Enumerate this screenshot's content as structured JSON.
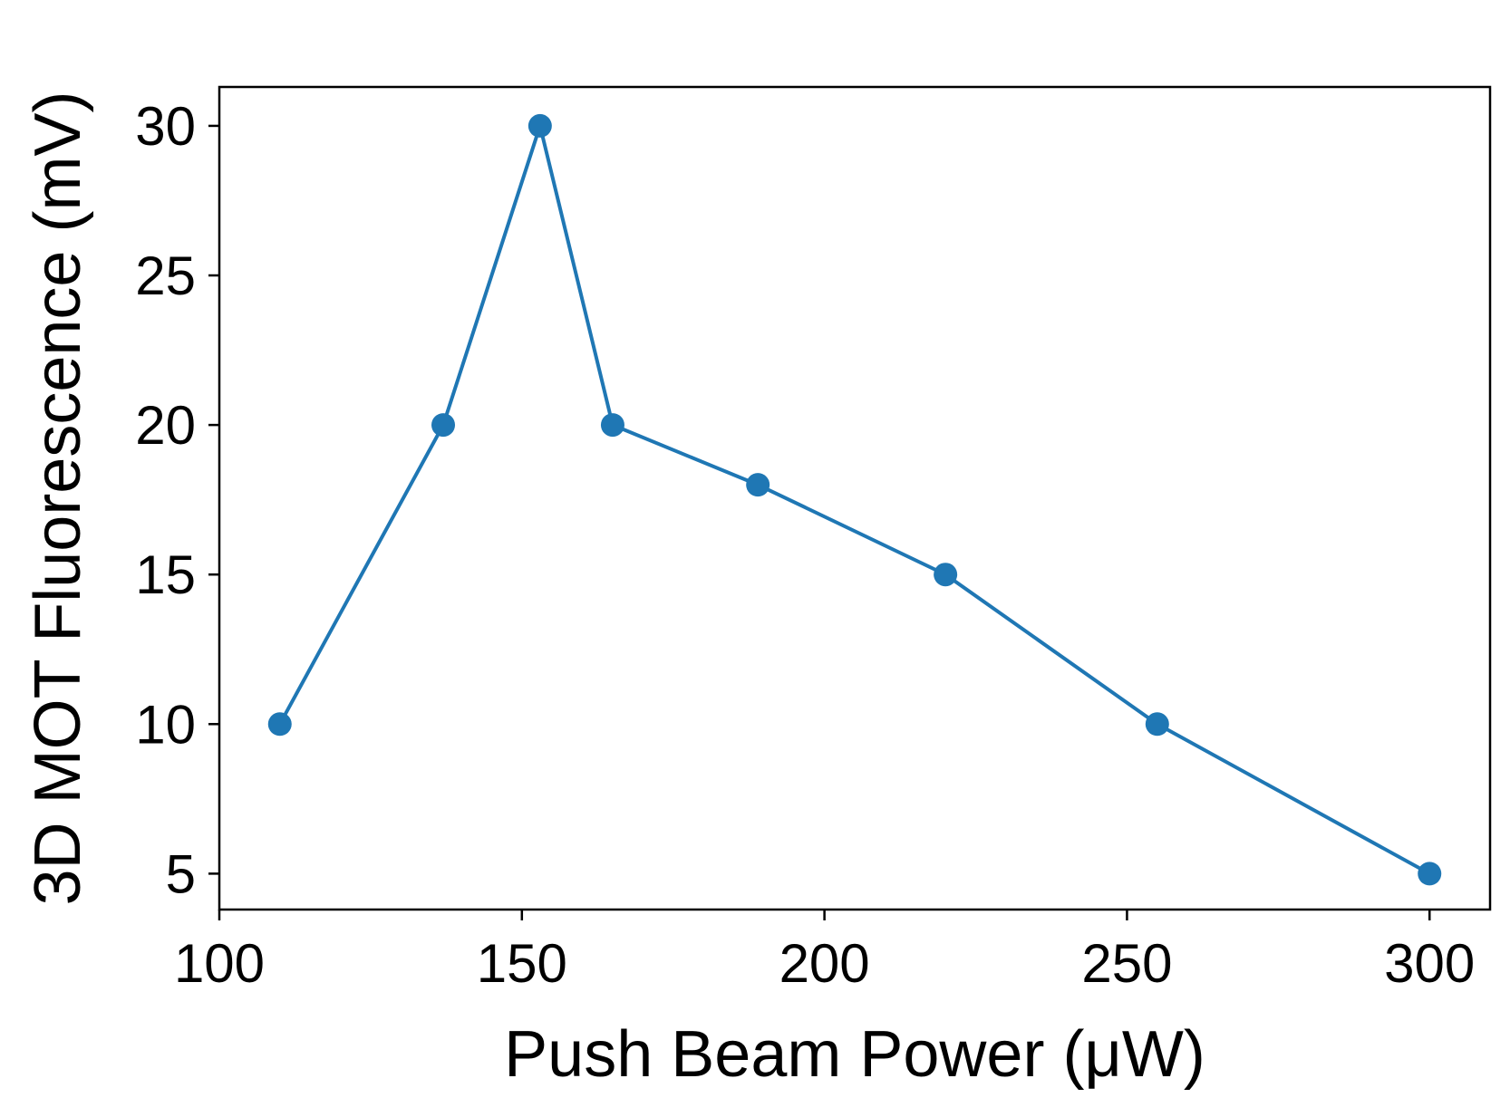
{
  "chart_data": {
    "type": "line",
    "title": "",
    "xlabel": "Push Beam Power (μW)",
    "ylabel": "3D MOT Fluorescence (mV)",
    "xlim": [
      100,
      310
    ],
    "ylim": [
      3.8,
      31.3
    ],
    "xticks": [
      100,
      150,
      200,
      250,
      300
    ],
    "yticks": [
      5,
      10,
      15,
      20,
      25,
      30
    ],
    "grid": false,
    "legend": "none",
    "series": [
      {
        "x": [
          110,
          137,
          153,
          165,
          189,
          220,
          255,
          300
        ],
        "y": [
          10,
          20,
          30,
          20,
          18,
          15,
          10,
          5
        ],
        "color": "#1f77b4",
        "marker": "circle"
      }
    ]
  }
}
